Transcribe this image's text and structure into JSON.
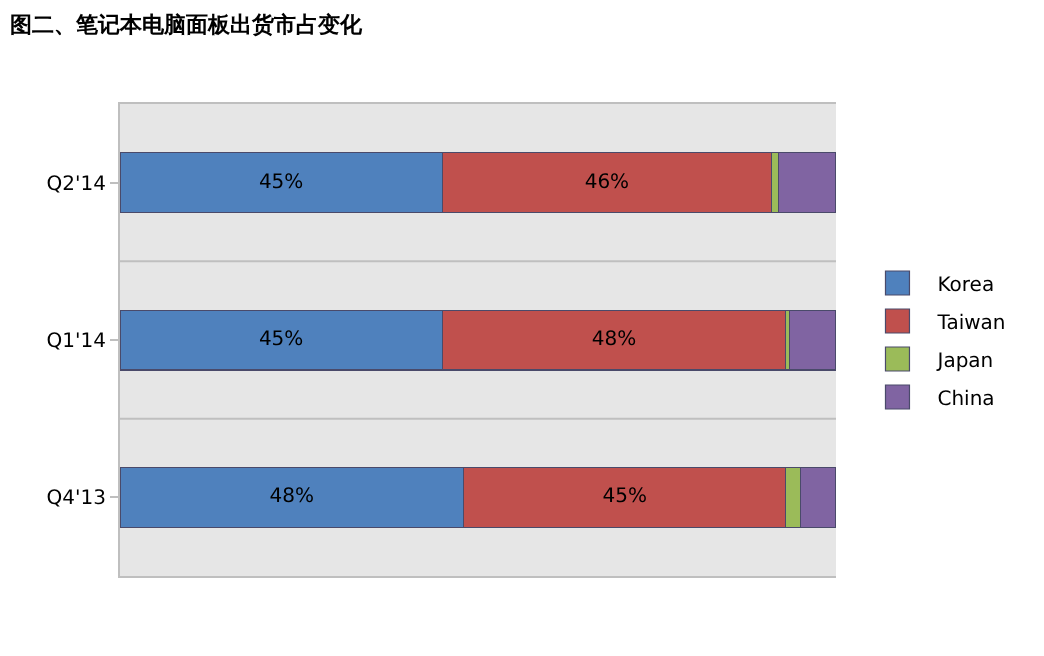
{
  "chart_data": {
    "type": "bar",
    "orientation": "horizontal",
    "stacked": true,
    "title": "图二、笔记本电脑面板出货市占变化",
    "categories": [
      "Q2'14",
      "Q1'14",
      "Q4'13"
    ],
    "series": [
      {
        "name": "Korea",
        "color": "#4f81bd",
        "values": [
          45,
          45,
          48
        ],
        "value_labels": [
          "45%",
          "45%",
          "48%"
        ]
      },
      {
        "name": "Taiwan",
        "color": "#c0504d",
        "values": [
          46,
          48,
          45
        ],
        "value_labels": [
          "46%",
          "48%",
          "45%"
        ]
      },
      {
        "name": "Japan",
        "color": "#9bbb59",
        "values": [
          1,
          0.5,
          2
        ]
      },
      {
        "name": "China",
        "color": "#8064a2",
        "values": [
          8,
          6.5,
          5
        ]
      }
    ],
    "xlim": [
      0,
      100
    ],
    "tick_labels": "y",
    "grid": "y",
    "legend": "right"
  }
}
